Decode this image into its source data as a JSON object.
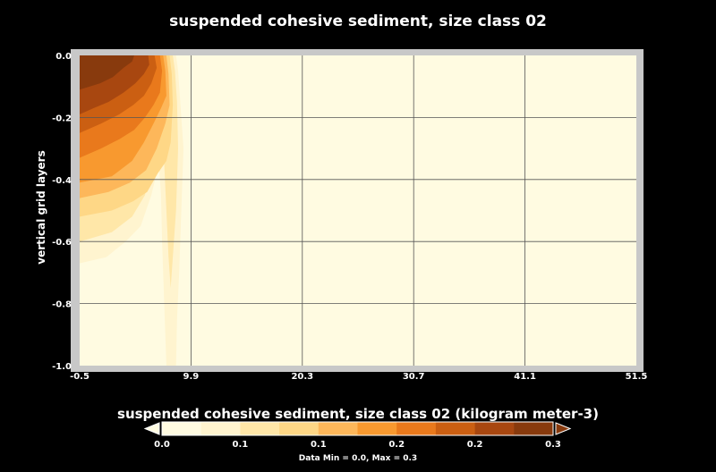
{
  "chart_data": {
    "type": "heatmap",
    "title": "suspended cohesive sediment, size class 02",
    "xlabel": "",
    "ylabel": "vertical grid layers",
    "xlim": [
      -0.5,
      51.5
    ],
    "ylim": [
      -1.0,
      0.0
    ],
    "x_ticks": [
      "-0.5",
      "9.9",
      "20.3",
      "30.7",
      "41.1",
      "51.5"
    ],
    "y_ticks": [
      "0.0",
      "-0.2",
      "-0.4",
      "-0.6",
      "-0.8",
      "-1.0"
    ],
    "grid": true,
    "colorbar": {
      "title": "suspended cohesive sediment, size class 02 (kilogram meter-3)",
      "labels": [
        "0.0",
        "0.1",
        "0.1",
        "0.2",
        "0.2",
        "0.3"
      ],
      "range": [
        0.0,
        0.3
      ],
      "colors": [
        "#fffbe1",
        "#fff4cf",
        "#ffe7a8",
        "#fed786",
        "#fdb75a",
        "#f8992f",
        "#e9791c",
        "#cb5f12",
        "#a84710",
        "#883a0d"
      ]
    },
    "contours": [
      {
        "level": 1,
        "points": [
          [
            -0.5,
            0.0
          ],
          [
            8.5,
            0.0
          ],
          [
            8.7,
            -0.05
          ],
          [
            8.9,
            -0.15
          ],
          [
            9.2,
            -0.3
          ],
          [
            9.0,
            -0.5
          ],
          [
            8.8,
            -0.7
          ],
          [
            8.6,
            -0.85
          ],
          [
            8.5,
            -1.0
          ],
          [
            7.6,
            -1.0
          ],
          [
            7.4,
            -0.8
          ],
          [
            7.2,
            -0.6
          ],
          [
            7.1,
            -0.45
          ],
          [
            6.9,
            -0.35
          ],
          [
            6.2,
            -0.45
          ],
          [
            5.2,
            -0.55
          ],
          [
            3.8,
            -0.6
          ],
          [
            2.0,
            -0.65
          ],
          [
            -0.5,
            -0.67
          ]
        ]
      },
      {
        "level": 2,
        "points": [
          [
            -0.5,
            0.0
          ],
          [
            8.2,
            0.0
          ],
          [
            8.4,
            -0.05
          ],
          [
            8.6,
            -0.15
          ],
          [
            8.7,
            -0.3
          ],
          [
            8.5,
            -0.5
          ],
          [
            8.2,
            -0.65
          ],
          [
            8.0,
            -0.75
          ],
          [
            7.8,
            -0.65
          ],
          [
            7.6,
            -0.5
          ],
          [
            7.4,
            -0.35
          ],
          [
            7.0,
            -0.25
          ],
          [
            6.4,
            -0.33
          ],
          [
            5.6,
            -0.45
          ],
          [
            4.4,
            -0.52
          ],
          [
            2.5,
            -0.57
          ],
          [
            -0.5,
            -0.6
          ]
        ]
      },
      {
        "level": 3,
        "points": [
          [
            -0.5,
            0.0
          ],
          [
            7.9,
            0.0
          ],
          [
            8.1,
            -0.06
          ],
          [
            8.2,
            -0.16
          ],
          [
            8.0,
            -0.28
          ],
          [
            7.6,
            -0.34
          ],
          [
            6.8,
            -0.38
          ],
          [
            5.8,
            -0.44
          ],
          [
            4.5,
            -0.47
          ],
          [
            2.5,
            -0.5
          ],
          [
            -0.5,
            -0.52
          ]
        ]
      },
      {
        "level": 4,
        "points": [
          [
            -0.5,
            0.0
          ],
          [
            7.6,
            0.0
          ],
          [
            7.8,
            -0.06
          ],
          [
            7.9,
            -0.16
          ],
          [
            7.5,
            -0.22
          ],
          [
            6.7,
            -0.3
          ],
          [
            5.7,
            -0.37
          ],
          [
            4.2,
            -0.41
          ],
          [
            2.2,
            -0.44
          ],
          [
            -0.5,
            -0.46
          ]
        ]
      },
      {
        "level": 5,
        "points": [
          [
            -0.5,
            0.0
          ],
          [
            7.3,
            0.0
          ],
          [
            7.5,
            -0.05
          ],
          [
            7.6,
            -0.13
          ],
          [
            7.1,
            -0.17
          ],
          [
            6.4,
            -0.22
          ],
          [
            5.5,
            -0.28
          ],
          [
            4.4,
            -0.34
          ],
          [
            2.5,
            -0.39
          ],
          [
            -0.5,
            -0.41
          ]
        ]
      },
      {
        "level": 6,
        "points": [
          [
            -0.5,
            0.0
          ],
          [
            7.0,
            0.0
          ],
          [
            7.2,
            -0.05
          ],
          [
            7.0,
            -0.12
          ],
          [
            6.4,
            -0.16
          ],
          [
            5.6,
            -0.2
          ],
          [
            4.6,
            -0.24
          ],
          [
            3.2,
            -0.27
          ],
          [
            1.5,
            -0.3
          ],
          [
            -0.5,
            -0.33
          ]
        ]
      },
      {
        "level": 7,
        "points": [
          [
            -0.5,
            0.0
          ],
          [
            6.5,
            0.0
          ],
          [
            6.7,
            -0.04
          ],
          [
            6.2,
            -0.09
          ],
          [
            5.5,
            -0.13
          ],
          [
            4.5,
            -0.16
          ],
          [
            3.2,
            -0.19
          ],
          [
            1.5,
            -0.22
          ],
          [
            -0.5,
            -0.25
          ]
        ]
      },
      {
        "level": 8,
        "points": [
          [
            -0.5,
            0.0
          ],
          [
            5.9,
            0.0
          ],
          [
            6.0,
            -0.03
          ],
          [
            5.5,
            -0.06
          ],
          [
            4.7,
            -0.09
          ],
          [
            3.6,
            -0.12
          ],
          [
            2.2,
            -0.15
          ],
          [
            0.8,
            -0.17
          ],
          [
            -0.5,
            -0.19
          ]
        ]
      },
      {
        "level": 9,
        "points": [
          [
            -0.5,
            0.0
          ],
          [
            4.6,
            0.0
          ],
          [
            4.4,
            -0.02
          ],
          [
            3.6,
            -0.04
          ],
          [
            2.6,
            -0.07
          ],
          [
            1.4,
            -0.09
          ],
          [
            -0.5,
            -0.11
          ]
        ]
      }
    ],
    "data_min": "0.0",
    "data_max": "0.3",
    "data_range_text": "Data Min = 0.0, Max = 0.3"
  }
}
